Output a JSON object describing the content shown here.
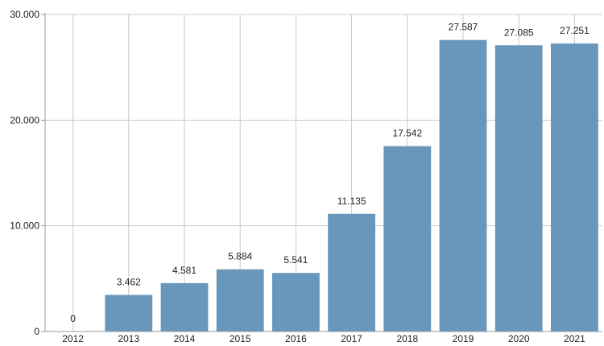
{
  "chart_data": {
    "type": "bar",
    "categories": [
      "2012",
      "2013",
      "2014",
      "2015",
      "2016",
      "2017",
      "2018",
      "2019",
      "2020",
      "2021"
    ],
    "values": [
      0,
      3462,
      4581,
      5884,
      5541,
      11135,
      17542,
      27587,
      27085,
      27251
    ],
    "data_labels": [
      "0",
      "3.462",
      "4.581",
      "5.884",
      "5.541",
      "11.135",
      "17.542",
      "27.587",
      "27.085",
      "27.251"
    ],
    "y_ticks": [
      0,
      10000,
      20000,
      30000
    ],
    "y_tick_labels": [
      "0",
      "10.000",
      "20.000",
      "30.000"
    ],
    "ylim": [
      0,
      30000
    ],
    "grid": true,
    "title": "",
    "xlabel": "",
    "ylabel": "",
    "bar_color": "#6897bb",
    "grid_color": "#c8c8c8",
    "axis_color": "#999999",
    "text_color": "#222222"
  }
}
